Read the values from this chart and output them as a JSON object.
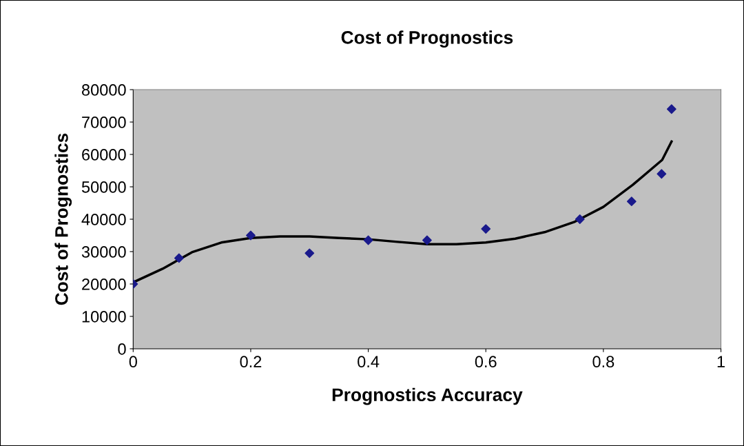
{
  "chart_data": {
    "type": "scatter",
    "title": "Cost of Prognostics",
    "xlabel": "Prognostics Accuracy",
    "ylabel": "Cost of Prognostics",
    "xlim": [
      0,
      1
    ],
    "xticks": [
      0,
      0.2,
      0.4,
      0.6,
      0.8,
      1
    ],
    "ylim": [
      0,
      80000
    ],
    "yticks": [
      0,
      10000,
      20000,
      30000,
      40000,
      50000,
      60000,
      70000,
      80000
    ],
    "grid": false,
    "series": [
      {
        "color": "#1a1a8c",
        "marker": "diamond",
        "x": [
          0,
          0.078,
          0.2,
          0.3,
          0.4,
          0.5,
          0.6,
          0.76,
          0.848,
          0.899,
          0.916
        ],
        "values": [
          20000,
          28000,
          35000,
          29500,
          33500,
          33500,
          37000,
          40000,
          45500,
          54000,
          74000
        ]
      },
      {
        "type": "line",
        "color": "#000000",
        "marker": "none",
        "line_style": "solid",
        "x": [
          0,
          0.05,
          0.1,
          0.15,
          0.2,
          0.25,
          0.3,
          0.35,
          0.4,
          0.45,
          0.5,
          0.55,
          0.6,
          0.65,
          0.7,
          0.75,
          0.8,
          0.85,
          0.9,
          0.916
        ],
        "values": [
          20500,
          24700,
          29800,
          32800,
          34200,
          34700,
          34700,
          34200,
          33800,
          33000,
          32300,
          32300,
          32800,
          34000,
          36000,
          39100,
          43800,
          50600,
          58300,
          64000
        ]
      }
    ]
  }
}
